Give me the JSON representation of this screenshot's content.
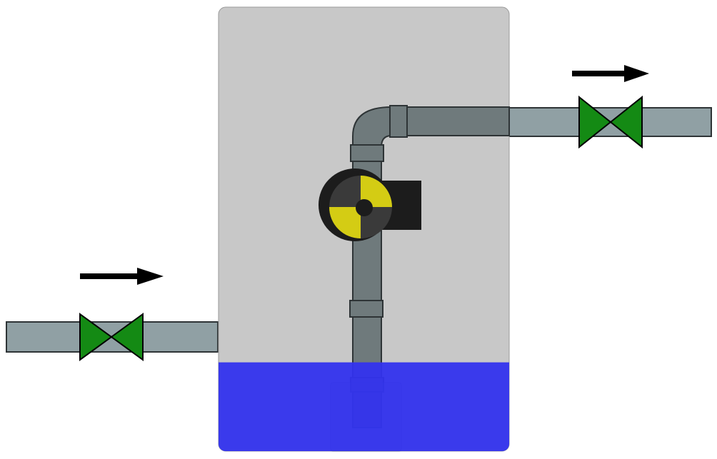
{
  "diagram": {
    "colors": {
      "background": "#ffffff",
      "tank_body": "#c8c8c8",
      "tank_outline": "#9a9a9a",
      "liquid": "#3333ee",
      "inlet_pipe": "#90a0a4",
      "outlet_pipe": "#90a0a4",
      "internal_pipe": "#6f7a7c",
      "pipe_outline": "#2e3436",
      "valve_fill": "#148a14",
      "valve_outline": "#000000",
      "pump_body": "#1c1c1c",
      "pump_blade": "#d4cc14",
      "pump_dark": "#3a3a3a",
      "arrow": "#000000"
    },
    "liquid_level": 0.2,
    "valves": {
      "inlet": {
        "icon": "butterfly-valve-icon",
        "state": "open"
      },
      "outlet": {
        "icon": "butterfly-valve-icon",
        "state": "open"
      }
    },
    "flow_arrows": {
      "inlet": {
        "icon": "right-arrow-icon",
        "direction": "right"
      },
      "outlet": {
        "icon": "right-arrow-icon",
        "direction": "right"
      }
    },
    "pump": {
      "icon": "centrifugal-pump-icon"
    }
  }
}
